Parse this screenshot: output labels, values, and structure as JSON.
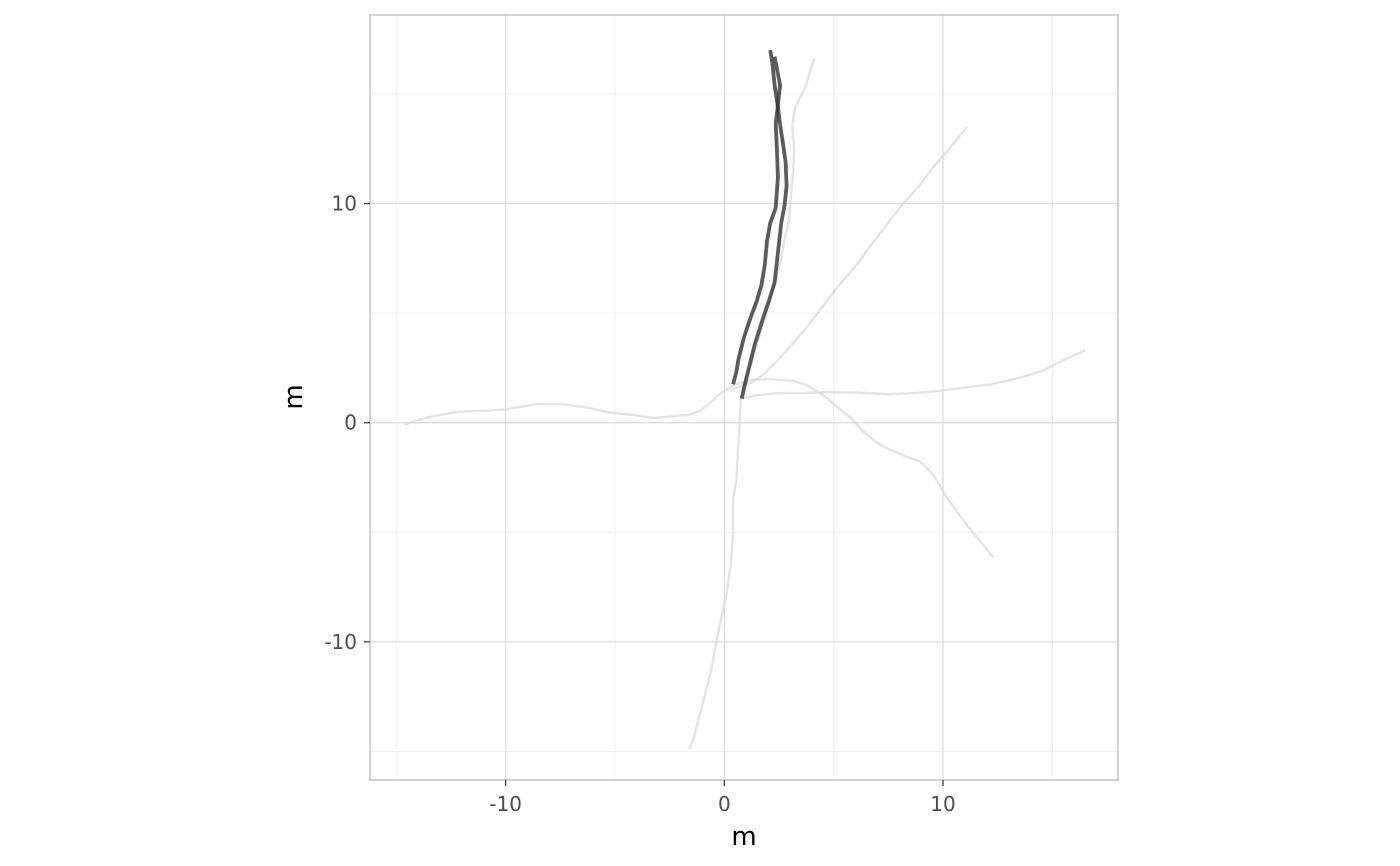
{
  "chart_data": {
    "type": "line",
    "title": "",
    "xlabel": "m",
    "ylabel": "m",
    "xlim": [
      -16.2,
      18
    ],
    "ylim": [
      -16.3,
      18.6
    ],
    "x_ticks": [
      -10,
      0,
      10
    ],
    "y_ticks": [
      -10,
      0,
      10
    ],
    "x_tick_labels": [
      "-10",
      "0",
      "10"
    ],
    "y_tick_labels": [
      "-10",
      "0",
      "10"
    ],
    "grid": true,
    "legend": "none",
    "colors": {
      "highlight": "#333333",
      "background_track": "#d9d9d9",
      "grid_major": "#dedede",
      "grid_minor": "#efefef",
      "panel_border": "#b3b3b3"
    },
    "series": [
      {
        "highlighted": false,
        "points": [
          [
            -14.6,
            -0.1
          ],
          [
            -14.1,
            0.1
          ],
          [
            -13.3,
            0.3
          ],
          [
            -12.1,
            0.5
          ],
          [
            -10.9,
            0.55
          ],
          [
            -10,
            0.6
          ],
          [
            -9.2,
            0.75
          ],
          [
            -8.5,
            0.85
          ],
          [
            -7.5,
            0.85
          ],
          [
            -6.3,
            0.7
          ],
          [
            -5.2,
            0.45
          ],
          [
            -4.2,
            0.35
          ],
          [
            -3.2,
            0.22
          ],
          [
            -2.3,
            0.3
          ],
          [
            -1.6,
            0.35
          ],
          [
            -1.1,
            0.55
          ],
          [
            -0.6,
            0.95
          ],
          [
            -0.1,
            1.4
          ],
          [
            0.5,
            1.75
          ],
          [
            1.2,
            1.95
          ],
          [
            2,
            2.0
          ],
          [
            3.2,
            1.9
          ],
          [
            3.8,
            1.7
          ],
          [
            4.6,
            1.2
          ],
          [
            5.2,
            0.7
          ],
          [
            5.8,
            0.2
          ],
          [
            6.3,
            -0.35
          ],
          [
            6.9,
            -0.85
          ],
          [
            7.4,
            -1.15
          ],
          [
            8.2,
            -1.5
          ],
          [
            8.9,
            -1.75
          ],
          [
            9.2,
            -2.0
          ],
          [
            9.6,
            -2.45
          ],
          [
            10.1,
            -3.3
          ],
          [
            10.6,
            -4.0
          ],
          [
            11.1,
            -4.7
          ],
          [
            11.7,
            -5.4
          ],
          [
            12.3,
            -6.15
          ]
        ]
      },
      {
        "highlighted": false,
        "points": [
          [
            -1.6,
            -14.9
          ],
          [
            -1.4,
            -14.4
          ],
          [
            -1.2,
            -13.6
          ],
          [
            -0.9,
            -12.5
          ],
          [
            -0.6,
            -11.3
          ],
          [
            -0.4,
            -10.2
          ],
          [
            -0.2,
            -9.2
          ],
          [
            0.1,
            -7.8
          ],
          [
            0.3,
            -6.4
          ],
          [
            0.4,
            -5.0
          ],
          [
            0.4,
            -3.4
          ],
          [
            0.55,
            -2.7
          ],
          [
            0.6,
            -1.7
          ],
          [
            0.7,
            -0.1
          ],
          [
            0.75,
            1.1
          ],
          [
            0.9,
            1.8
          ],
          [
            1.2,
            2.6
          ],
          [
            1.5,
            3.6
          ],
          [
            1.8,
            4.6
          ],
          [
            2.1,
            5.7
          ],
          [
            2.35,
            6.5
          ],
          [
            2.6,
            7.5
          ],
          [
            2.8,
            8.6
          ],
          [
            2.95,
            9.2
          ],
          [
            3.05,
            10.4
          ],
          [
            3.15,
            11.5
          ],
          [
            3.2,
            12.4
          ],
          [
            3.1,
            13.6
          ],
          [
            3.25,
            14.4
          ],
          [
            3.7,
            15.3
          ],
          [
            4.1,
            16.6
          ]
        ]
      },
      {
        "highlighted": false,
        "points": [
          [
            0.8,
            1.1
          ],
          [
            1.5,
            1.25
          ],
          [
            2.5,
            1.35
          ],
          [
            3.6,
            1.35
          ],
          [
            4.8,
            1.4
          ],
          [
            6,
            1.38
          ],
          [
            7.5,
            1.3
          ],
          [
            8.7,
            1.35
          ],
          [
            9.8,
            1.45
          ],
          [
            11,
            1.6
          ],
          [
            12.2,
            1.75
          ],
          [
            13.5,
            2.05
          ],
          [
            14.5,
            2.35
          ],
          [
            15.5,
            2.85
          ],
          [
            16.5,
            3.3
          ]
        ]
      },
      {
        "highlighted": false,
        "points": [
          [
            0.3,
            1.5
          ],
          [
            1.3,
            1.85
          ],
          [
            1.9,
            2.3
          ],
          [
            2.5,
            2.9
          ],
          [
            3.2,
            3.7
          ],
          [
            3.8,
            4.4
          ],
          [
            4.5,
            5.3
          ],
          [
            5.1,
            6.1
          ],
          [
            5.7,
            6.8
          ],
          [
            6.2,
            7.4
          ],
          [
            6.7,
            8.1
          ],
          [
            7.4,
            9.0
          ],
          [
            8.1,
            9.9
          ],
          [
            8.9,
            10.8
          ],
          [
            9.5,
            11.6
          ],
          [
            10.2,
            12.4
          ],
          [
            10.7,
            13.0
          ],
          [
            11.1,
            13.5
          ]
        ]
      },
      {
        "highlighted": true,
        "points": [
          [
            0.4,
            1.75
          ],
          [
            0.55,
            2.3
          ],
          [
            0.65,
            2.9
          ],
          [
            0.9,
            3.9
          ],
          [
            1.2,
            4.8
          ],
          [
            1.5,
            5.6
          ],
          [
            1.7,
            6.3
          ],
          [
            1.85,
            7.2
          ],
          [
            1.95,
            8.3
          ],
          [
            2.1,
            9.1
          ],
          [
            2.35,
            9.8
          ],
          [
            2.4,
            10.5
          ],
          [
            2.45,
            11.2
          ],
          [
            2.4,
            12.6
          ],
          [
            2.35,
            13.6
          ],
          [
            2.45,
            14.5
          ],
          [
            2.55,
            15.4
          ],
          [
            2.3,
            16.7
          ]
        ]
      },
      {
        "highlighted": true,
        "points": [
          [
            0.8,
            1.1
          ],
          [
            0.95,
            1.8
          ],
          [
            1.15,
            2.6
          ],
          [
            1.4,
            3.6
          ],
          [
            1.75,
            4.7
          ],
          [
            2.05,
            5.6
          ],
          [
            2.3,
            6.4
          ],
          [
            2.4,
            7.3
          ],
          [
            2.5,
            8.2
          ],
          [
            2.6,
            9.1
          ],
          [
            2.75,
            9.9
          ],
          [
            2.85,
            10.8
          ],
          [
            2.8,
            11.9
          ],
          [
            2.7,
            12.6
          ],
          [
            2.55,
            13.6
          ],
          [
            2.45,
            14.4
          ],
          [
            2.3,
            15.4
          ],
          [
            2.2,
            16.4
          ],
          [
            2.1,
            17.0
          ]
        ]
      }
    ]
  }
}
